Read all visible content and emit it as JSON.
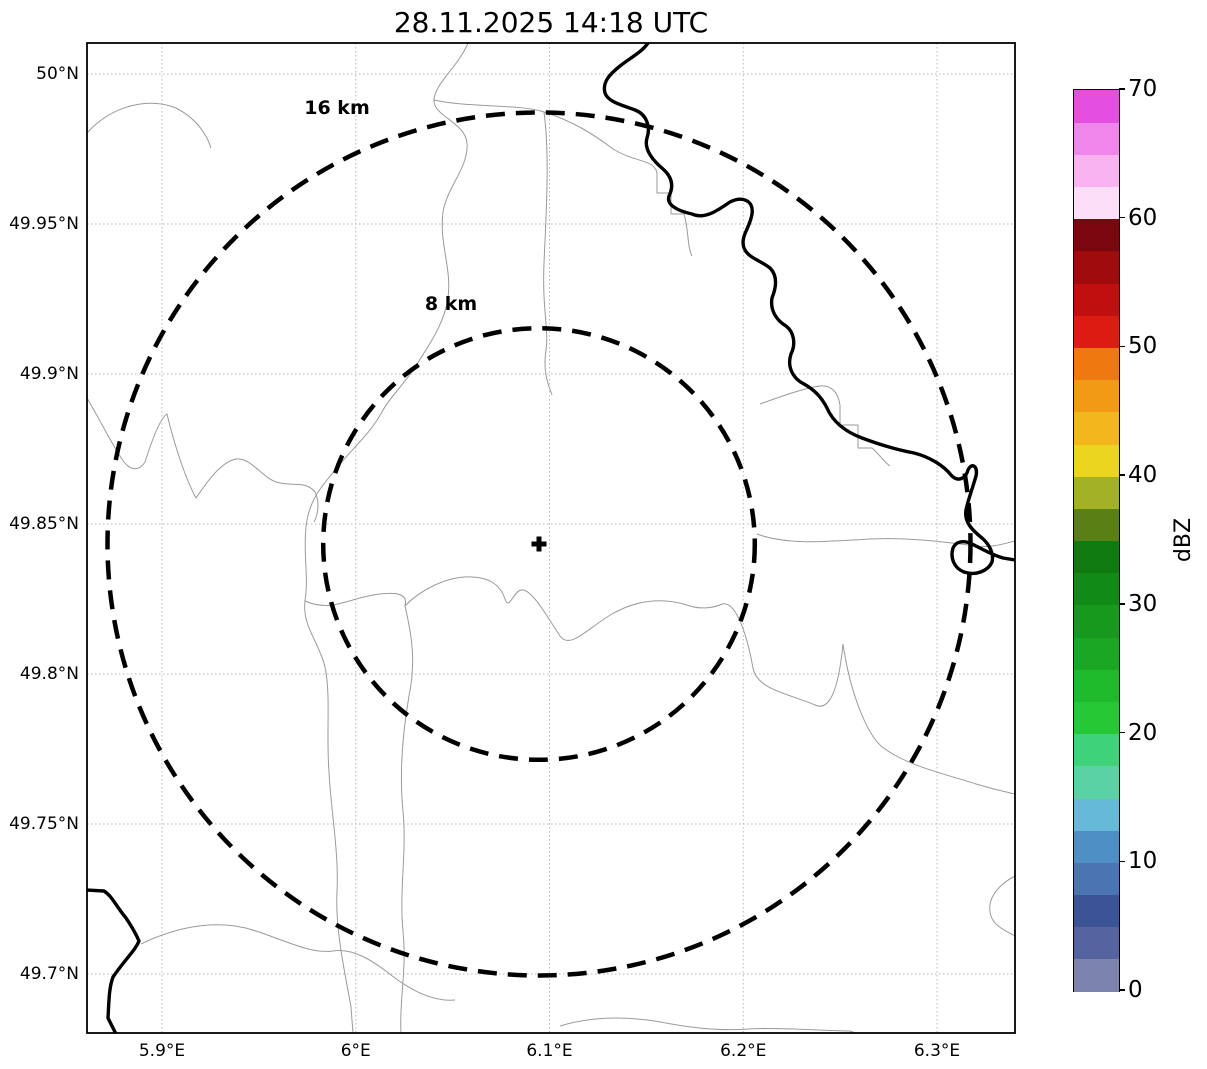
{
  "title": "28.11.2025 14:18 UTC",
  "map": {
    "range_rings": [
      {
        "label": "16 km",
        "radius_km": 16
      },
      {
        "label": "8 km",
        "radius_km": 8
      }
    ],
    "center_marker_symbol": "+"
  },
  "axes": {
    "lon_ticks": [
      {
        "label": "5.9°E",
        "value": 5.9
      },
      {
        "label": "6°E",
        "value": 6.0
      },
      {
        "label": "6.1°E",
        "value": 6.1
      },
      {
        "label": "6.2°E",
        "value": 6.2
      },
      {
        "label": "6.3°E",
        "value": 6.3
      }
    ],
    "lat_ticks": [
      {
        "label": "50°N",
        "value": 50.0
      },
      {
        "label": "49.95°N",
        "value": 49.95
      },
      {
        "label": "49.9°N",
        "value": 49.9
      },
      {
        "label": "49.85°N",
        "value": 49.85
      },
      {
        "label": "49.8°N",
        "value": 49.8
      },
      {
        "label": "49.75°N",
        "value": 49.75
      },
      {
        "label": "49.7°N",
        "value": 49.7
      }
    ]
  },
  "colorbar": {
    "label": "dBZ",
    "min": 0,
    "max": 70,
    "ticks": [
      {
        "label": "0",
        "value": 0
      },
      {
        "label": "10",
        "value": 10
      },
      {
        "label": "20",
        "value": 20
      },
      {
        "label": "30",
        "value": 30
      },
      {
        "label": "40",
        "value": 40
      },
      {
        "label": "50",
        "value": 50
      },
      {
        "label": "60",
        "value": 60
      },
      {
        "label": "70",
        "value": 70
      }
    ],
    "scale": [
      {
        "from": 0,
        "to": 2.5,
        "color": "#7c84ad"
      },
      {
        "from": 2.5,
        "to": 5,
        "color": "#5563a0"
      },
      {
        "from": 5,
        "to": 7.5,
        "color": "#3b5496"
      },
      {
        "from": 7.5,
        "to": 10,
        "color": "#4b74b3"
      },
      {
        "from": 10,
        "to": 12.5,
        "color": "#4e8fc4"
      },
      {
        "from": 12.5,
        "to": 15,
        "color": "#66b9d9"
      },
      {
        "from": 15,
        "to": 17.5,
        "color": "#5bd2a3"
      },
      {
        "from": 17.5,
        "to": 20,
        "color": "#3ed27a"
      },
      {
        "from": 20,
        "to": 22.5,
        "color": "#26c836"
      },
      {
        "from": 22.5,
        "to": 25,
        "color": "#1fb92c"
      },
      {
        "from": 25,
        "to": 27.5,
        "color": "#1aa824"
      },
      {
        "from": 27.5,
        "to": 30,
        "color": "#16991c"
      },
      {
        "from": 30,
        "to": 32.5,
        "color": "#128a16"
      },
      {
        "from": 32.5,
        "to": 35,
        "color": "#0e7a10"
      },
      {
        "from": 35,
        "to": 37.5,
        "color": "#597f15"
      },
      {
        "from": 37.5,
        "to": 40,
        "color": "#a3b126"
      },
      {
        "from": 40,
        "to": 42.5,
        "color": "#ecd51f"
      },
      {
        "from": 42.5,
        "to": 45,
        "color": "#f2b71c"
      },
      {
        "from": 45,
        "to": 47.5,
        "color": "#f29a15"
      },
      {
        "from": 47.5,
        "to": 50,
        "color": "#ee7910"
      },
      {
        "from": 50,
        "to": 52.5,
        "color": "#dc1c10"
      },
      {
        "from": 52.5,
        "to": 55,
        "color": "#c10f0f"
      },
      {
        "from": 55,
        "to": 57.5,
        "color": "#a00c0e"
      },
      {
        "from": 57.5,
        "to": 60,
        "color": "#7a0710"
      },
      {
        "from": 60,
        "to": 62.5,
        "color": "#fcdef8"
      },
      {
        "from": 62.5,
        "to": 65,
        "color": "#f8b3f0"
      },
      {
        "from": 65,
        "to": 67.5,
        "color": "#f086ec"
      },
      {
        "from": 67.5,
        "to": 70,
        "color": "#e44fe0"
      }
    ]
  }
}
